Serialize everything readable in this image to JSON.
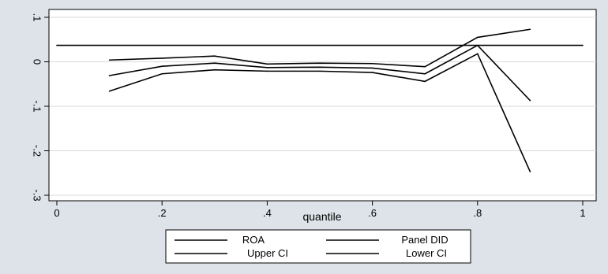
{
  "chart_data": {
    "type": "line",
    "title": "",
    "xlabel": "quantile",
    "ylabel": "",
    "xlim": [
      0,
      1
    ],
    "ylim": [
      -0.3,
      0.1
    ],
    "x_ticks": [
      {
        "value": 0,
        "label": "0"
      },
      {
        "value": 0.2,
        "label": ".2"
      },
      {
        "value": 0.4,
        "label": ".4"
      },
      {
        "value": 0.6,
        "label": ".6"
      },
      {
        "value": 0.8,
        "label": ".8"
      },
      {
        "value": 1,
        "label": "1"
      }
    ],
    "y_ticks": [
      {
        "value": 0.1,
        "label": ".1"
      },
      {
        "value": 0,
        "label": "0"
      },
      {
        "value": -0.1,
        "label": "-.1"
      },
      {
        "value": -0.2,
        "label": "-.2"
      },
      {
        "value": -0.3,
        "label": "-.3"
      }
    ],
    "grid": true,
    "legend_position": "bottom",
    "x": [
      0.1,
      0.2,
      0.3,
      0.4,
      0.5,
      0.6,
      0.7,
      0.8,
      0.9
    ],
    "series": [
      {
        "name": "ROA",
        "x": [
          0.1,
          0.2,
          0.3,
          0.4,
          0.5,
          0.6,
          0.7,
          0.8,
          0.9
        ],
        "values": [
          -0.031,
          -0.01,
          -0.003,
          -0.013,
          -0.012,
          -0.014,
          -0.027,
          0.037,
          -0.087
        ]
      },
      {
        "name": "Panel DID",
        "x": [
          0,
          1
        ],
        "values": [
          0.037,
          0.037
        ]
      },
      {
        "name": "Upper CI",
        "x": [
          0.1,
          0.2,
          0.3,
          0.4,
          0.5,
          0.6,
          0.7,
          0.8,
          0.9
        ],
        "values": [
          0.004,
          0.008,
          0.013,
          -0.005,
          -0.003,
          -0.004,
          -0.011,
          0.055,
          0.073
        ]
      },
      {
        "name": "Lower CI",
        "x": [
          0.1,
          0.2,
          0.3,
          0.4,
          0.5,
          0.6,
          0.7,
          0.8,
          0.9
        ],
        "values": [
          -0.066,
          -0.027,
          -0.018,
          -0.021,
          -0.021,
          -0.024,
          -0.044,
          0.018,
          -0.247
        ]
      }
    ]
  }
}
